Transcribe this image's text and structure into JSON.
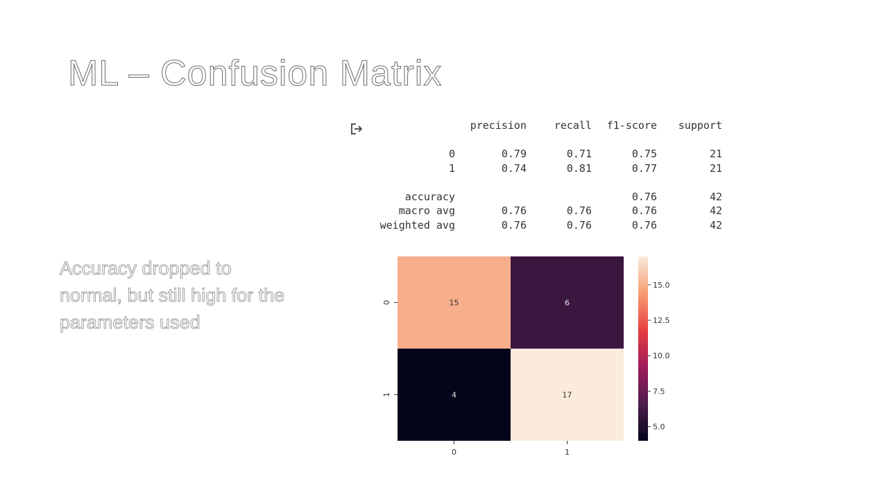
{
  "slide": {
    "title": "ML – Confusion Matrix",
    "body": "Accuracy dropped to normal, but still high for the parameters used"
  },
  "report": {
    "header": [
      "",
      "precision",
      "recall",
      "f1-score",
      "support"
    ],
    "class_rows": [
      [
        "0",
        "0.79",
        "0.71",
        "0.75",
        "21"
      ],
      [
        "1",
        "0.74",
        "0.81",
        "0.77",
        "21"
      ]
    ],
    "summary_rows": [
      [
        "accuracy",
        "",
        "",
        "0.76",
        "42"
      ],
      [
        "macro avg",
        "0.76",
        "0.76",
        "0.76",
        "42"
      ],
      [
        "weighted avg",
        "0.76",
        "0.76",
        "0.76",
        "42"
      ]
    ]
  },
  "chart_data": {
    "type": "heatmap",
    "x_categories": [
      "0",
      "1"
    ],
    "y_categories": [
      "0",
      "1"
    ],
    "values": [
      [
        15,
        6
      ],
      [
        4,
        17
      ]
    ],
    "colorbar": {
      "ticks": [
        5.0,
        7.5,
        10.0,
        12.5,
        15.0
      ],
      "tick_labels": [
        "5.0",
        "7.5",
        "10.0",
        "12.5",
        "15.0"
      ],
      "range": [
        4,
        17
      ]
    },
    "colormap": [
      "#03051a",
      "#4c1d4b",
      "#a11a5b",
      "#e83f3f",
      "#f69c73",
      "#faebdd"
    ],
    "annotation_colors": {
      "dark_cell": "#e6e6e6",
      "light_cell": "#333333"
    }
  }
}
